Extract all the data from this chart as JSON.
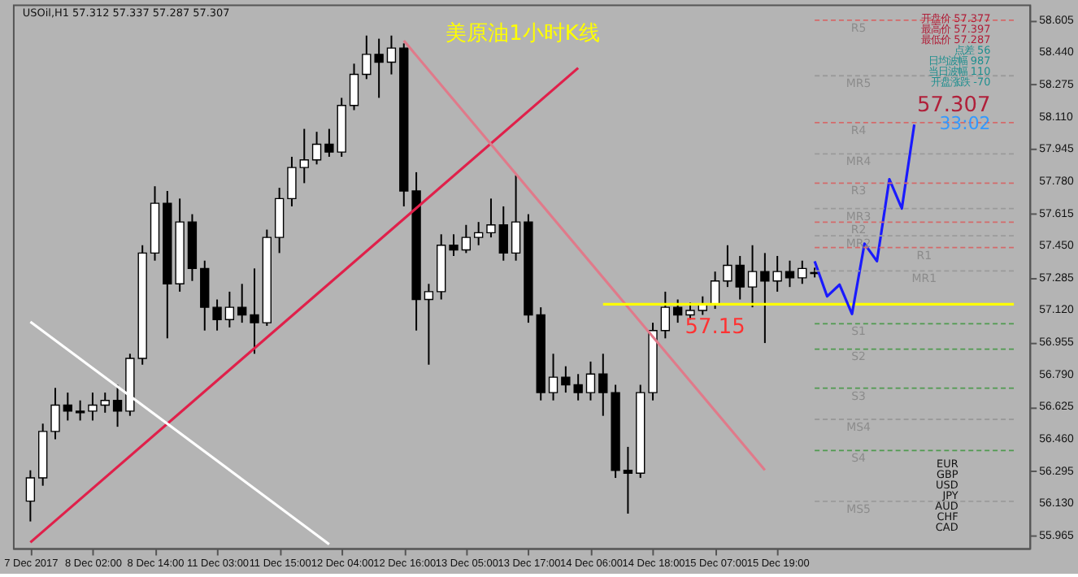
{
  "chart_data": {
    "type": "candlestick",
    "categories": [
      "7 Dec 2017",
      null,
      null,
      null,
      null,
      "8 Dec 02:00",
      null,
      null,
      null,
      null,
      "8 Dec 14:00",
      null,
      null,
      null,
      null,
      "11 Dec 03:00",
      null,
      null,
      null,
      null,
      "11 Dec 15:00",
      null,
      null,
      null,
      null,
      "12 Dec 04:00",
      null,
      null,
      null,
      null,
      "12 Dec 16:00",
      null,
      null,
      null,
      null,
      "13 Dec 05:00",
      null,
      null,
      null,
      null,
      "13 Dec 17:00",
      null,
      null,
      null,
      null,
      "14 Dec 06:00",
      null,
      null,
      null,
      null,
      "14 Dec 18:00",
      null,
      null,
      null,
      null,
      "15 Dec 07:00",
      null,
      null,
      null,
      null,
      "15 Dec 19:00",
      null,
      null,
      null,
      null,
      null,
      null,
      null,
      null,
      null,
      null,
      null,
      null,
      null,
      null,
      null,
      null,
      null,
      null,
      null
    ],
    "ohlc": [
      [
        56.141,
        56.299,
        56.037,
        56.26
      ],
      [
        56.26,
        56.538,
        56.22,
        56.498
      ],
      [
        56.498,
        56.721,
        56.458,
        56.633
      ],
      [
        56.633,
        56.697,
        56.554,
        56.602
      ],
      [
        56.602,
        56.657,
        56.554,
        56.594
      ],
      [
        56.602,
        56.697,
        56.554,
        56.633
      ],
      [
        56.633,
        56.697,
        56.594,
        56.657
      ],
      [
        56.657,
        56.737,
        56.522,
        56.602
      ],
      [
        56.602,
        56.896,
        56.578,
        56.872
      ],
      [
        56.872,
        57.452,
        56.84,
        57.412
      ],
      [
        57.412,
        57.754,
        57.373,
        57.667
      ],
      [
        57.667,
        57.73,
        56.975,
        57.254
      ],
      [
        57.254,
        57.691,
        57.214,
        57.571
      ],
      [
        57.571,
        57.611,
        57.269,
        57.333
      ],
      [
        57.333,
        57.373,
        57.015,
        57.134
      ],
      [
        57.134,
        57.174,
        57.015,
        57.071
      ],
      [
        57.071,
        57.214,
        57.031,
        57.134
      ],
      [
        57.134,
        57.254,
        57.055,
        57.095
      ],
      [
        57.095,
        57.333,
        56.896,
        57.055
      ],
      [
        57.055,
        57.532,
        57.039,
        57.492
      ],
      [
        57.492,
        57.746,
        57.412,
        57.691
      ],
      [
        57.691,
        57.905,
        57.651,
        57.85
      ],
      [
        57.85,
        58.048,
        57.77,
        57.889
      ],
      [
        57.889,
        58.033,
        57.866,
        57.969
      ],
      [
        57.969,
        58.048,
        57.905,
        57.929
      ],
      [
        57.929,
        58.207,
        57.905,
        58.168
      ],
      [
        58.168,
        58.382,
        58.144,
        58.327
      ],
      [
        58.327,
        58.526,
        58.303,
        58.43
      ],
      [
        58.43,
        58.51,
        58.207,
        58.39
      ],
      [
        58.39,
        58.526,
        58.327,
        58.462
      ],
      [
        58.462,
        58.486,
        57.651,
        57.73
      ],
      [
        57.73,
        57.826,
        57.015,
        57.174
      ],
      [
        57.174,
        57.254,
        56.84,
        57.214
      ],
      [
        57.214,
        57.508,
        57.174,
        57.452
      ],
      [
        57.452,
        57.508,
        57.397,
        57.428
      ],
      [
        57.428,
        57.556,
        57.412,
        57.492
      ],
      [
        57.492,
        57.571,
        57.452,
        57.516
      ],
      [
        57.516,
        57.691,
        57.492,
        57.556
      ],
      [
        57.556,
        57.651,
        57.373,
        57.412
      ],
      [
        57.412,
        57.81,
        57.373,
        57.571
      ],
      [
        57.571,
        57.611,
        57.055,
        57.095
      ],
      [
        57.095,
        57.134,
        56.657,
        56.697
      ],
      [
        56.697,
        56.896,
        56.657,
        56.776
      ],
      [
        56.776,
        56.832,
        56.697,
        56.737
      ],
      [
        56.737,
        56.792,
        56.657,
        56.697
      ],
      [
        56.697,
        56.856,
        56.657,
        56.792
      ],
      [
        56.792,
        56.896,
        56.578,
        56.697
      ],
      [
        56.697,
        56.737,
        56.26,
        56.299
      ],
      [
        56.299,
        56.419,
        56.077,
        56.284
      ],
      [
        56.284,
        56.737,
        56.26,
        56.697
      ],
      [
        56.697,
        57.055,
        56.657,
        57.015
      ],
      [
        57.015,
        57.214,
        56.975,
        57.134
      ],
      [
        57.134,
        57.174,
        57.055,
        57.095
      ],
      [
        57.095,
        57.158,
        57.071,
        57.118
      ],
      [
        57.118,
        57.19,
        57.095,
        57.15
      ],
      [
        57.15,
        57.317,
        57.126,
        57.269
      ],
      [
        57.269,
        57.452,
        57.238,
        57.349
      ],
      [
        57.349,
        57.397,
        57.174,
        57.238
      ],
      [
        57.238,
        57.452,
        57.134,
        57.317
      ],
      [
        57.317,
        57.412,
        56.951,
        57.269
      ],
      [
        57.269,
        57.397,
        57.214,
        57.317
      ],
      [
        57.317,
        57.373,
        57.238,
        57.285
      ],
      [
        57.285,
        57.373,
        57.254,
        57.333
      ],
      [
        57.312,
        57.337,
        57.287,
        57.307
      ],
      null,
      null,
      null,
      null,
      null,
      null,
      null,
      null,
      null,
      null,
      null,
      null,
      null,
      null,
      null,
      null
    ],
    "series": [
      {
        "type": "line",
        "color": "#e0204a",
        "values": [
          55.93,
          null,
          null,
          null,
          null,
          null,
          null,
          null,
          null,
          null,
          null,
          null,
          null,
          null,
          null,
          null,
          null,
          null,
          null,
          null,
          null,
          null,
          null,
          null,
          null,
          null,
          null,
          null,
          null,
          null,
          null,
          null,
          null,
          null,
          null,
          null,
          null,
          null,
          null,
          null,
          null,
          null,
          null,
          null,
          58.36,
          null,
          null,
          null,
          null,
          null,
          null,
          null,
          null,
          null,
          null,
          null,
          null,
          null,
          null,
          null,
          null,
          null,
          null,
          null,
          null,
          null,
          null,
          null,
          null,
          null,
          null,
          null,
          null,
          null,
          null,
          null,
          null,
          null,
          null,
          null
        ]
      },
      {
        "type": "line",
        "color": "#e07a8a",
        "values": [
          null,
          null,
          null,
          null,
          null,
          null,
          null,
          null,
          null,
          null,
          null,
          null,
          null,
          null,
          null,
          null,
          null,
          null,
          null,
          null,
          null,
          null,
          null,
          null,
          null,
          null,
          null,
          null,
          null,
          null,
          58.5,
          null,
          null,
          null,
          null,
          null,
          null,
          null,
          null,
          null,
          null,
          null,
          null,
          null,
          null,
          null,
          null,
          null,
          null,
          null,
          null,
          null,
          null,
          null,
          null,
          null,
          null,
          null,
          null,
          56.3,
          null,
          null,
          null,
          null,
          null,
          null,
          null,
          null,
          null,
          null,
          null,
          null,
          null,
          null,
          null,
          null,
          null,
          null,
          null,
          null
        ]
      },
      {
        "type": "line",
        "color": "#ffffff",
        "values": [
          57.06,
          null,
          null,
          null,
          null,
          null,
          null,
          null,
          null,
          null,
          null,
          null,
          null,
          null,
          null,
          null,
          null,
          null,
          null,
          null,
          null,
          null,
          null,
          null,
          55.92,
          null,
          null,
          null,
          null,
          null,
          null,
          null,
          null,
          null,
          null,
          null,
          null,
          null,
          null,
          null,
          null,
          null,
          null,
          null,
          null,
          null,
          null,
          null,
          null,
          null,
          null,
          null,
          null,
          null,
          null,
          null,
          null,
          null,
          null,
          null,
          null,
          null,
          null,
          null,
          null,
          null,
          null,
          null,
          null,
          null,
          null,
          null,
          null,
          null,
          null,
          null,
          null,
          null,
          null,
          null
        ]
      },
      {
        "type": "line",
        "color": "#ffff00",
        "values": [
          null,
          null,
          null,
          null,
          null,
          null,
          null,
          null,
          null,
          null,
          null,
          null,
          null,
          null,
          null,
          null,
          null,
          null,
          null,
          null,
          null,
          null,
          null,
          null,
          null,
          null,
          null,
          null,
          null,
          null,
          null,
          null,
          null,
          null,
          null,
          null,
          null,
          null,
          null,
          null,
          null,
          null,
          null,
          null,
          null,
          null,
          57.15,
          null,
          null,
          null,
          null,
          null,
          null,
          null,
          null,
          null,
          null,
          null,
          null,
          null,
          null,
          null,
          null,
          null,
          null,
          null,
          null,
          null,
          null,
          null,
          null,
          null,
          null,
          null,
          null,
          null,
          null,
          null,
          null,
          57.15
        ]
      },
      {
        "type": "line",
        "color": "#1a1aff",
        "values": [
          null,
          null,
          null,
          null,
          null,
          null,
          null,
          null,
          null,
          null,
          null,
          null,
          null,
          null,
          null,
          null,
          null,
          null,
          null,
          null,
          null,
          null,
          null,
          null,
          null,
          null,
          null,
          null,
          null,
          null,
          null,
          null,
          null,
          null,
          null,
          null,
          null,
          null,
          null,
          null,
          null,
          null,
          null,
          null,
          null,
          null,
          null,
          null,
          null,
          null,
          null,
          null,
          null,
          null,
          null,
          null,
          null,
          null,
          null,
          null,
          null,
          null,
          null,
          57.37,
          57.19,
          57.25,
          57.1,
          57.46,
          57.37,
          57.79,
          57.64,
          58.07,
          null,
          null,
          null,
          null,
          null,
          null,
          null,
          null
        ]
      },
      {
        "type": "line",
        "name": "R5",
        "color": "#d46a6a",
        "line_style": "dashed",
        "values": [
          null,
          null,
          null,
          null,
          null,
          null,
          null,
          null,
          null,
          null,
          null,
          null,
          null,
          null,
          null,
          null,
          null,
          null,
          null,
          null,
          null,
          null,
          null,
          null,
          null,
          null,
          null,
          null,
          null,
          null,
          null,
          null,
          null,
          null,
          null,
          null,
          null,
          null,
          null,
          null,
          null,
          null,
          null,
          null,
          null,
          null,
          null,
          null,
          null,
          null,
          null,
          null,
          null,
          null,
          null,
          null,
          null,
          null,
          null,
          null,
          null,
          null,
          null,
          58.605,
          null,
          null,
          null,
          null,
          null,
          null,
          null,
          null,
          null,
          null,
          null,
          null,
          null,
          null,
          null,
          58.605
        ]
      },
      {
        "type": "line",
        "name": "MR5",
        "color": "#9a9a9a",
        "line_style": "dashed",
        "values": [
          null,
          null,
          null,
          null,
          null,
          null,
          null,
          null,
          null,
          null,
          null,
          null,
          null,
          null,
          null,
          null,
          null,
          null,
          null,
          null,
          null,
          null,
          null,
          null,
          null,
          null,
          null,
          null,
          null,
          null,
          null,
          null,
          null,
          null,
          null,
          null,
          null,
          null,
          null,
          null,
          null,
          null,
          null,
          null,
          null,
          null,
          null,
          null,
          null,
          null,
          null,
          null,
          null,
          null,
          null,
          null,
          null,
          null,
          null,
          null,
          null,
          null,
          null,
          58.32,
          null,
          null,
          null,
          null,
          null,
          null,
          null,
          null,
          null,
          null,
          null,
          null,
          null,
          null,
          null,
          58.32
        ]
      },
      {
        "type": "line",
        "name": "R4",
        "color": "#d46a6a",
        "line_style": "dashed",
        "values": [
          null,
          null,
          null,
          null,
          null,
          null,
          null,
          null,
          null,
          null,
          null,
          null,
          null,
          null,
          null,
          null,
          null,
          null,
          null,
          null,
          null,
          null,
          null,
          null,
          null,
          null,
          null,
          null,
          null,
          null,
          null,
          null,
          null,
          null,
          null,
          null,
          null,
          null,
          null,
          null,
          null,
          null,
          null,
          null,
          null,
          null,
          null,
          null,
          null,
          null,
          null,
          null,
          null,
          null,
          null,
          null,
          null,
          null,
          null,
          null,
          null,
          null,
          null,
          58.08,
          null,
          null,
          null,
          null,
          null,
          null,
          null,
          null,
          null,
          null,
          null,
          null,
          null,
          null,
          null,
          58.08
        ]
      },
      {
        "type": "line",
        "name": "MR4",
        "color": "#9a9a9a",
        "line_style": "dashed",
        "values": [
          null,
          null,
          null,
          null,
          null,
          null,
          null,
          null,
          null,
          null,
          null,
          null,
          null,
          null,
          null,
          null,
          null,
          null,
          null,
          null,
          null,
          null,
          null,
          null,
          null,
          null,
          null,
          null,
          null,
          null,
          null,
          null,
          null,
          null,
          null,
          null,
          null,
          null,
          null,
          null,
          null,
          null,
          null,
          null,
          null,
          null,
          null,
          null,
          null,
          null,
          null,
          null,
          null,
          null,
          null,
          null,
          null,
          null,
          null,
          null,
          null,
          null,
          null,
          57.92,
          null,
          null,
          null,
          null,
          null,
          null,
          null,
          null,
          null,
          null,
          null,
          null,
          null,
          null,
          null,
          57.92
        ]
      },
      {
        "type": "line",
        "name": "R3",
        "color": "#d46a6a",
        "line_style": "dashed",
        "values": [
          null,
          null,
          null,
          null,
          null,
          null,
          null,
          null,
          null,
          null,
          null,
          null,
          null,
          null,
          null,
          null,
          null,
          null,
          null,
          null,
          null,
          null,
          null,
          null,
          null,
          null,
          null,
          null,
          null,
          null,
          null,
          null,
          null,
          null,
          null,
          null,
          null,
          null,
          null,
          null,
          null,
          null,
          null,
          null,
          null,
          null,
          null,
          null,
          null,
          null,
          null,
          null,
          null,
          null,
          null,
          null,
          null,
          null,
          null,
          null,
          null,
          null,
          null,
          57.77,
          null,
          null,
          null,
          null,
          null,
          null,
          null,
          null,
          null,
          null,
          null,
          null,
          null,
          null,
          null,
          57.77
        ]
      },
      {
        "type": "line",
        "name": "MR3",
        "color": "#9a9a9a",
        "line_style": "dashed",
        "values": [
          null,
          null,
          null,
          null,
          null,
          null,
          null,
          null,
          null,
          null,
          null,
          null,
          null,
          null,
          null,
          null,
          null,
          null,
          null,
          null,
          null,
          null,
          null,
          null,
          null,
          null,
          null,
          null,
          null,
          null,
          null,
          null,
          null,
          null,
          null,
          null,
          null,
          null,
          null,
          null,
          null,
          null,
          null,
          null,
          null,
          null,
          null,
          null,
          null,
          null,
          null,
          null,
          null,
          null,
          null,
          null,
          null,
          null,
          null,
          null,
          null,
          null,
          null,
          57.64,
          null,
          null,
          null,
          null,
          null,
          null,
          null,
          null,
          null,
          null,
          null,
          null,
          null,
          null,
          null,
          57.64
        ]
      },
      {
        "type": "line",
        "name": "R2",
        "color": "#d46a6a",
        "line_style": "dashed",
        "values": [
          null,
          null,
          null,
          null,
          null,
          null,
          null,
          null,
          null,
          null,
          null,
          null,
          null,
          null,
          null,
          null,
          null,
          null,
          null,
          null,
          null,
          null,
          null,
          null,
          null,
          null,
          null,
          null,
          null,
          null,
          null,
          null,
          null,
          null,
          null,
          null,
          null,
          null,
          null,
          null,
          null,
          null,
          null,
          null,
          null,
          null,
          null,
          null,
          null,
          null,
          null,
          null,
          null,
          null,
          null,
          null,
          null,
          null,
          null,
          null,
          null,
          null,
          null,
          57.57,
          null,
          null,
          null,
          null,
          null,
          null,
          null,
          null,
          null,
          null,
          null,
          null,
          null,
          null,
          null,
          57.57
        ]
      },
      {
        "type": "line",
        "name": "MR2",
        "color": "#9a9a9a",
        "line_style": "dashed",
        "values": [
          null,
          null,
          null,
          null,
          null,
          null,
          null,
          null,
          null,
          null,
          null,
          null,
          null,
          null,
          null,
          null,
          null,
          null,
          null,
          null,
          null,
          null,
          null,
          null,
          null,
          null,
          null,
          null,
          null,
          null,
          null,
          null,
          null,
          null,
          null,
          null,
          null,
          null,
          null,
          null,
          null,
          null,
          null,
          null,
          null,
          null,
          null,
          null,
          null,
          null,
          null,
          null,
          null,
          null,
          null,
          null,
          null,
          null,
          null,
          null,
          null,
          null,
          null,
          57.5,
          null,
          null,
          null,
          null,
          null,
          null,
          null,
          null,
          null,
          null,
          null,
          null,
          null,
          null,
          null,
          57.5
        ]
      },
      {
        "type": "line",
        "name": "R1",
        "color": "#d46a6a",
        "line_style": "dashed",
        "values": [
          null,
          null,
          null,
          null,
          null,
          null,
          null,
          null,
          null,
          null,
          null,
          null,
          null,
          null,
          null,
          null,
          null,
          null,
          null,
          null,
          null,
          null,
          null,
          null,
          null,
          null,
          null,
          null,
          null,
          null,
          null,
          null,
          null,
          null,
          null,
          null,
          null,
          null,
          null,
          null,
          null,
          null,
          null,
          null,
          null,
          null,
          null,
          null,
          null,
          null,
          null,
          null,
          null,
          null,
          null,
          null,
          null,
          null,
          null,
          null,
          null,
          null,
          null,
          57.44,
          null,
          null,
          null,
          null,
          null,
          null,
          null,
          null,
          null,
          null,
          null,
          null,
          null,
          null,
          null,
          57.44
        ]
      },
      {
        "type": "line",
        "name": "MR1",
        "color": "#9a9a9a",
        "line_style": "dashed",
        "values": [
          null,
          null,
          null,
          null,
          null,
          null,
          null,
          null,
          null,
          null,
          null,
          null,
          null,
          null,
          null,
          null,
          null,
          null,
          null,
          null,
          null,
          null,
          null,
          null,
          null,
          null,
          null,
          null,
          null,
          null,
          null,
          null,
          null,
          null,
          null,
          null,
          null,
          null,
          null,
          null,
          null,
          null,
          null,
          null,
          null,
          null,
          null,
          null,
          null,
          null,
          null,
          null,
          null,
          null,
          null,
          null,
          null,
          null,
          null,
          null,
          null,
          null,
          null,
          57.32,
          null,
          null,
          null,
          null,
          null,
          null,
          null,
          null,
          null,
          null,
          null,
          null,
          null,
          null,
          null,
          57.32
        ]
      },
      {
        "type": "line",
        "name": "S1",
        "color": "#4f9a4f",
        "line_style": "dashed",
        "values": [
          null,
          null,
          null,
          null,
          null,
          null,
          null,
          null,
          null,
          null,
          null,
          null,
          null,
          null,
          null,
          null,
          null,
          null,
          null,
          null,
          null,
          null,
          null,
          null,
          null,
          null,
          null,
          null,
          null,
          null,
          null,
          null,
          null,
          null,
          null,
          null,
          null,
          null,
          null,
          null,
          null,
          null,
          null,
          null,
          null,
          null,
          null,
          null,
          null,
          null,
          null,
          null,
          null,
          null,
          null,
          null,
          null,
          null,
          null,
          null,
          null,
          null,
          null,
          57.05,
          null,
          null,
          null,
          null,
          null,
          null,
          null,
          null,
          null,
          null,
          null,
          null,
          null,
          null,
          null,
          57.05
        ]
      },
      {
        "type": "line",
        "name": "S2",
        "color": "#4f9a4f",
        "line_style": "dashed",
        "values": [
          null,
          null,
          null,
          null,
          null,
          null,
          null,
          null,
          null,
          null,
          null,
          null,
          null,
          null,
          null,
          null,
          null,
          null,
          null,
          null,
          null,
          null,
          null,
          null,
          null,
          null,
          null,
          null,
          null,
          null,
          null,
          null,
          null,
          null,
          null,
          null,
          null,
          null,
          null,
          null,
          null,
          null,
          null,
          null,
          null,
          null,
          null,
          null,
          null,
          null,
          null,
          null,
          null,
          null,
          null,
          null,
          null,
          null,
          null,
          null,
          null,
          null,
          null,
          56.92,
          null,
          null,
          null,
          null,
          null,
          null,
          null,
          null,
          null,
          null,
          null,
          null,
          null,
          null,
          null,
          56.92
        ]
      },
      {
        "type": "line",
        "name": "S3",
        "color": "#4f9a4f",
        "line_style": "dashed",
        "values": [
          null,
          null,
          null,
          null,
          null,
          null,
          null,
          null,
          null,
          null,
          null,
          null,
          null,
          null,
          null,
          null,
          null,
          null,
          null,
          null,
          null,
          null,
          null,
          null,
          null,
          null,
          null,
          null,
          null,
          null,
          null,
          null,
          null,
          null,
          null,
          null,
          null,
          null,
          null,
          null,
          null,
          null,
          null,
          null,
          null,
          null,
          null,
          null,
          null,
          null,
          null,
          null,
          null,
          null,
          null,
          null,
          null,
          null,
          null,
          null,
          null,
          null,
          null,
          56.72,
          null,
          null,
          null,
          null,
          null,
          null,
          null,
          null,
          null,
          null,
          null,
          null,
          null,
          null,
          null,
          56.72
        ]
      },
      {
        "type": "line",
        "name": "MS4",
        "color": "#9a9a9a",
        "line_style": "dashed",
        "values": [
          null,
          null,
          null,
          null,
          null,
          null,
          null,
          null,
          null,
          null,
          null,
          null,
          null,
          null,
          null,
          null,
          null,
          null,
          null,
          null,
          null,
          null,
          null,
          null,
          null,
          null,
          null,
          null,
          null,
          null,
          null,
          null,
          null,
          null,
          null,
          null,
          null,
          null,
          null,
          null,
          null,
          null,
          null,
          null,
          null,
          null,
          null,
          null,
          null,
          null,
          null,
          null,
          null,
          null,
          null,
          null,
          null,
          null,
          null,
          null,
          null,
          null,
          null,
          56.56,
          null,
          null,
          null,
          null,
          null,
          null,
          null,
          null,
          null,
          null,
          null,
          null,
          null,
          null,
          null,
          56.56
        ]
      },
      {
        "type": "line",
        "name": "S4",
        "color": "#4f9a4f",
        "line_style": "dashed",
        "values": [
          null,
          null,
          null,
          null,
          null,
          null,
          null,
          null,
          null,
          null,
          null,
          null,
          null,
          null,
          null,
          null,
          null,
          null,
          null,
          null,
          null,
          null,
          null,
          null,
          null,
          null,
          null,
          null,
          null,
          null,
          null,
          null,
          null,
          null,
          null,
          null,
          null,
          null,
          null,
          null,
          null,
          null,
          null,
          null,
          null,
          null,
          null,
          null,
          null,
          null,
          null,
          null,
          null,
          null,
          null,
          null,
          null,
          null,
          null,
          null,
          null,
          null,
          null,
          56.4,
          null,
          null,
          null,
          null,
          null,
          null,
          null,
          null,
          null,
          null,
          null,
          null,
          null,
          null,
          null,
          56.4
        ]
      },
      {
        "type": "line",
        "name": "MS5",
        "color": "#9a9a9a",
        "line_style": "dashed",
        "values": [
          null,
          null,
          null,
          null,
          null,
          null,
          null,
          null,
          null,
          null,
          null,
          null,
          null,
          null,
          null,
          null,
          null,
          null,
          null,
          null,
          null,
          null,
          null,
          null,
          null,
          null,
          null,
          null,
          null,
          null,
          null,
          null,
          null,
          null,
          null,
          null,
          null,
          null,
          null,
          null,
          null,
          null,
          null,
          null,
          null,
          null,
          null,
          null,
          null,
          null,
          null,
          null,
          null,
          null,
          null,
          null,
          null,
          null,
          null,
          null,
          null,
          null,
          null,
          56.14,
          null,
          null,
          null,
          null,
          null,
          null,
          null,
          null,
          null,
          null,
          null,
          null,
          null,
          null,
          null,
          56.14
        ]
      }
    ],
    "title": "美原油1小时K线",
    "ylim": [
      55.9,
      58.685
    ],
    "yticks": [
      58.605,
      {
        "value": 58.44,
        "label": "58.440"
      },
      58.275,
      {
        "value": 58.11,
        "label": "58.110"
      },
      57.945,
      {
        "value": 57.78,
        "label": "57.780"
      },
      57.615,
      {
        "value": 57.45,
        "label": "57.450"
      },
      57.285,
      {
        "value": 57.12,
        "label": "57.120"
      },
      56.955,
      {
        "value": 56.79,
        "label": "56.790"
      },
      56.625,
      {
        "value": 56.46,
        "label": "56.460"
      },
      56.295,
      {
        "value": 56.13,
        "label": "56.130"
      },
      55.965
    ],
    "annotations": [
      "USOil,H1 57.312 57.337 57.287 57.307",
      "开盘价 57.377",
      "最高价 57.397",
      "最低价 57.287",
      "点差 56",
      "日均波幅 987",
      "当日波幅 110",
      "开盘涨跌 -70",
      "57.307",
      "33:02",
      "EUR",
      "GBP",
      "USD",
      "JPY",
      "AUD",
      "CHF",
      "CAD",
      {
        "text": "57.15",
        "x": "15 Dec 07:00",
        "y": 57.15
      }
    ],
    "grid": false
  }
}
